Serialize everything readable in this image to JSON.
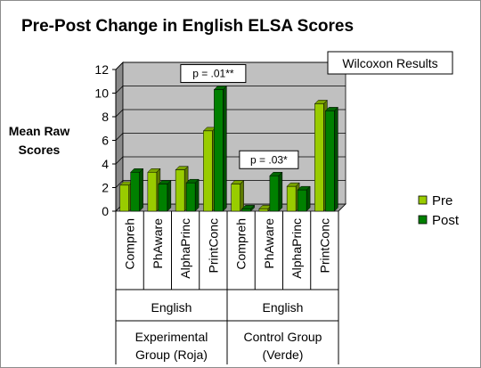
{
  "chart_data": {
    "type": "bar",
    "title": "Pre-Post Change in English ELSA Scores",
    "ylabel": [
      "Mean Raw",
      "Scores"
    ],
    "ylim": [
      0,
      12
    ],
    "yticks": [
      0,
      2,
      4,
      6,
      8,
      10,
      12
    ],
    "grid": true,
    "legend_position": "right",
    "categories": [
      "Compreh",
      "PhAware",
      "AlphaPrinc",
      "PrintConc",
      "Compreh",
      "PhAware",
      "AlphaPrinc",
      "PrintConc"
    ],
    "category_groups": [
      {
        "subject": "English",
        "group_label": [
          "Experimental",
          "Group (Roja)"
        ],
        "span": 4
      },
      {
        "subject": "English",
        "group_label": [
          "Control Group",
          "(Verde)"
        ],
        "span": 4
      }
    ],
    "series": [
      {
        "name": "Pre",
        "color": "#99cc00",
        "values": [
          2.2,
          3.3,
          3.5,
          6.8,
          2.3,
          0.2,
          2.1,
          9.1
        ]
      },
      {
        "name": "Post",
        "color": "#008000",
        "values": [
          3.3,
          2.3,
          2.4,
          10.3,
          0.2,
          3.0,
          1.8,
          8.5
        ]
      }
    ],
    "annotations": [
      {
        "text": "Wilcoxon Results",
        "kind": "box"
      },
      {
        "text": "p = .01**",
        "category_index": 3
      },
      {
        "text": "p = .03*",
        "category_index": 5
      }
    ]
  }
}
